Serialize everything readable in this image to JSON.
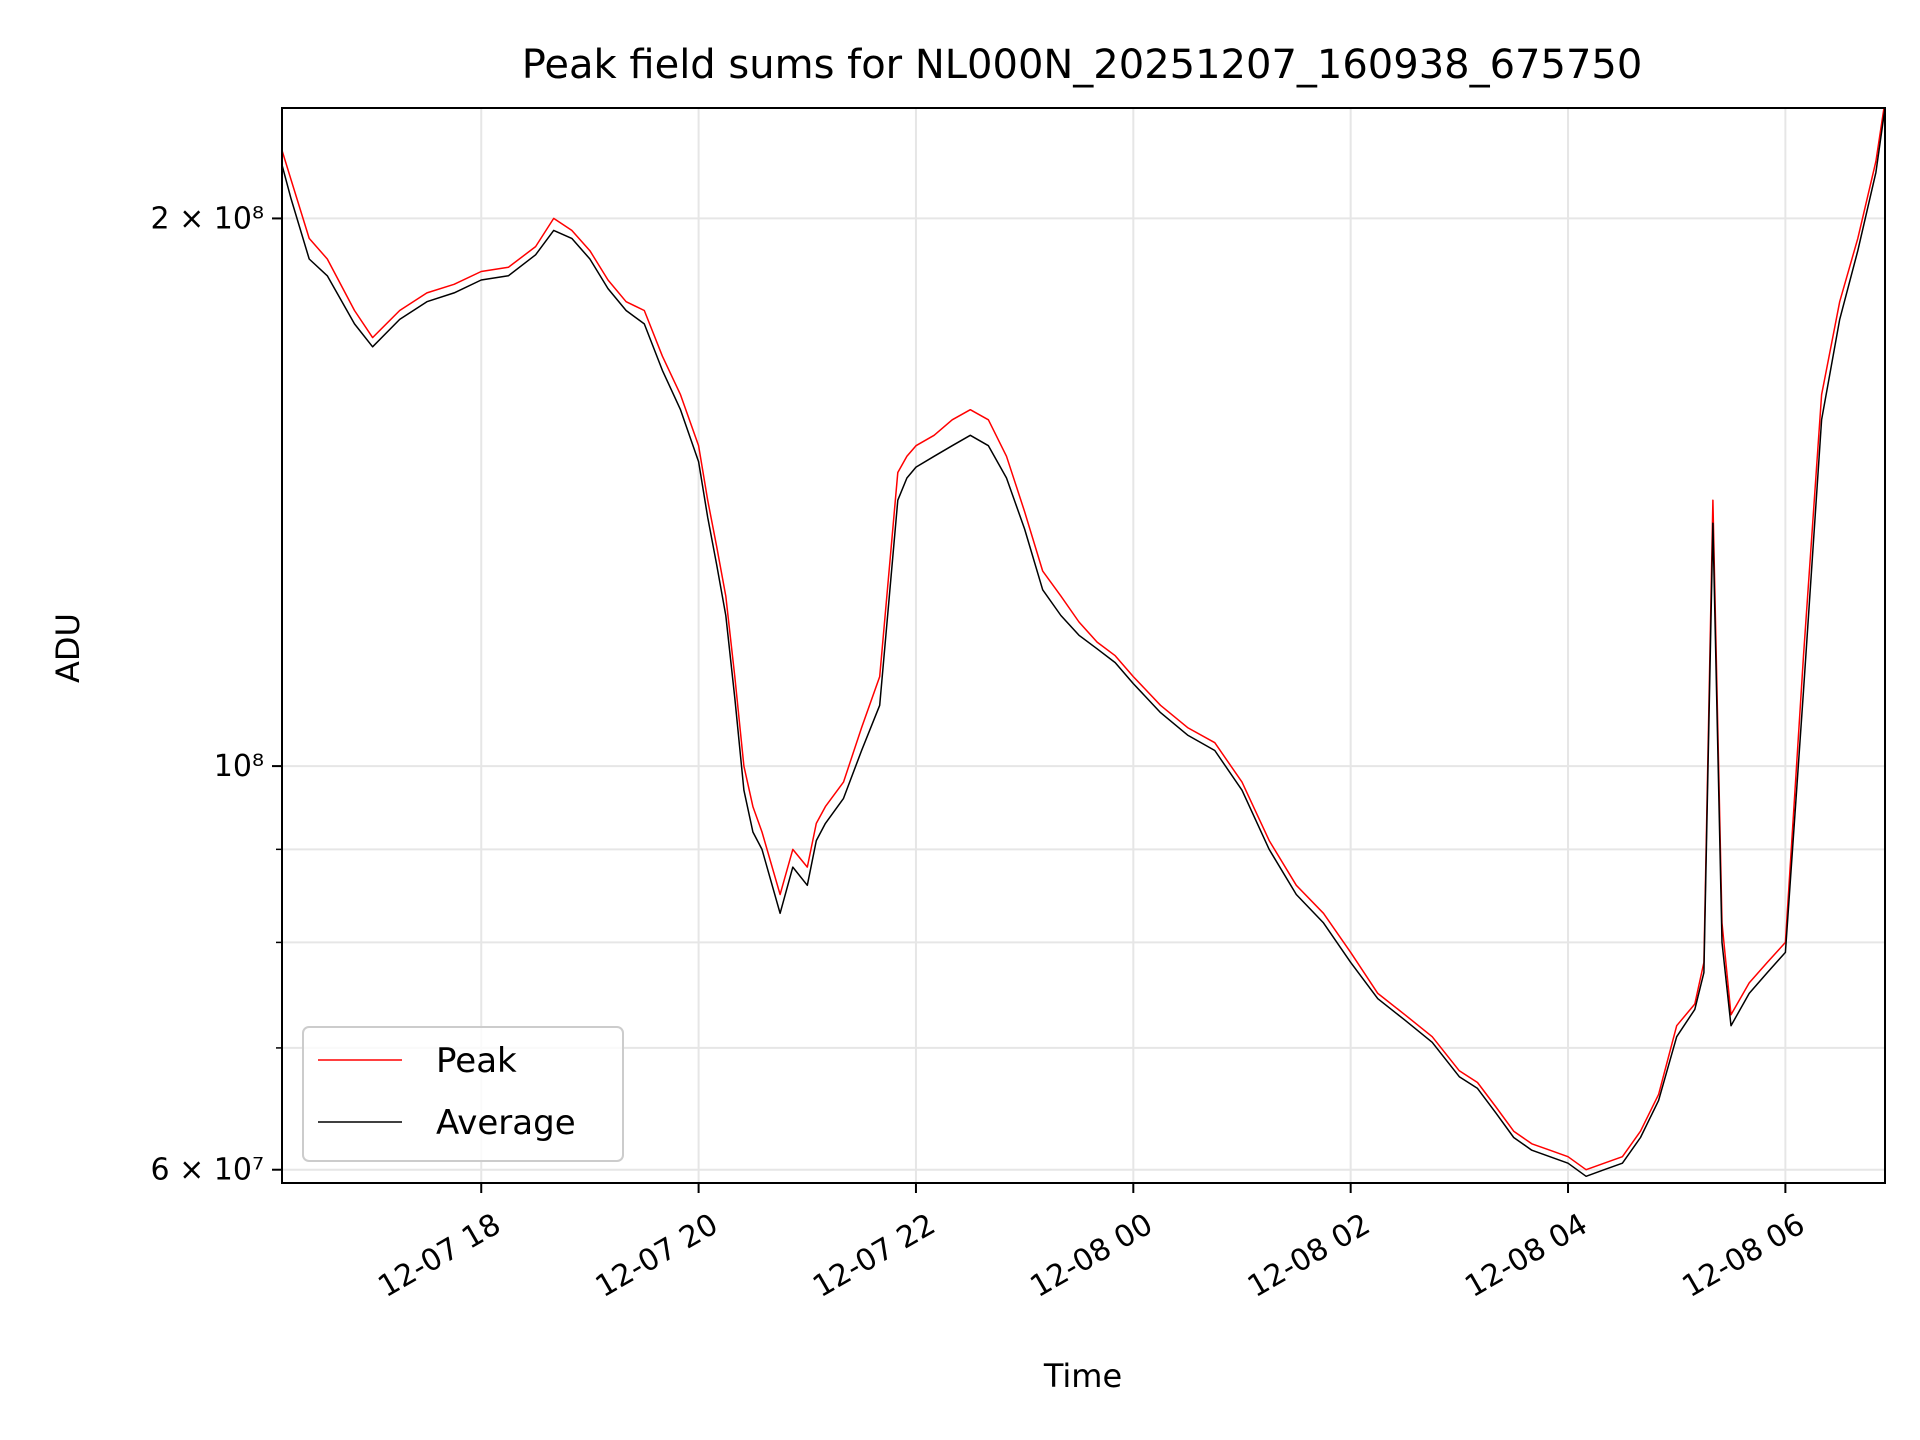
{
  "chart_data": {
    "type": "line",
    "title": "Peak field sums for NL000N_20251207_160938_675750",
    "xlabel": "Time",
    "ylabel": "ADU",
    "yscale": "log",
    "ylim": [
      59000000,
      230000000
    ],
    "xlim": [
      "2025-12-07 16:10",
      "2025-12-08 06:55"
    ],
    "x_ticks": [
      "12-07 18",
      "12-07 20",
      "12-07 22",
      "12-08 00",
      "12-08 02",
      "12-08 04",
      "12-08 06"
    ],
    "x_tick_times": [
      "2025-12-07 18:00",
      "2025-12-07 20:00",
      "2025-12-07 22:00",
      "2025-12-08 00:00",
      "2025-12-08 02:00",
      "2025-12-08 04:00",
      "2025-12-08 06:00"
    ],
    "y_major_ticks": [
      {
        "value": 60000000,
        "label": "6 × 10⁷"
      },
      {
        "value": 100000000,
        "label": "10⁸"
      },
      {
        "value": 200000000,
        "label": "2 × 10⁸"
      }
    ],
    "y_minor_ticks": [
      70000000,
      80000000,
      90000000
    ],
    "grid": true,
    "legend_position": "lower-left",
    "x": [
      "2025-12-07 16:10",
      "2025-12-07 16:15",
      "2025-12-07 16:25",
      "2025-12-07 16:35",
      "2025-12-07 16:50",
      "2025-12-07 17:00",
      "2025-12-07 17:15",
      "2025-12-07 17:30",
      "2025-12-07 17:45",
      "2025-12-07 18:00",
      "2025-12-07 18:15",
      "2025-12-07 18:30",
      "2025-12-07 18:40",
      "2025-12-07 18:50",
      "2025-12-07 19:00",
      "2025-12-07 19:10",
      "2025-12-07 19:20",
      "2025-12-07 19:30",
      "2025-12-07 19:40",
      "2025-12-07 19:50",
      "2025-12-07 20:00",
      "2025-12-07 20:05",
      "2025-12-07 20:10",
      "2025-12-07 20:15",
      "2025-12-07 20:20",
      "2025-12-07 20:25",
      "2025-12-07 20:30",
      "2025-12-07 20:35",
      "2025-12-07 20:45",
      "2025-12-07 20:52",
      "2025-12-07 21:00",
      "2025-12-07 21:05",
      "2025-12-07 21:10",
      "2025-12-07 21:20",
      "2025-12-07 21:30",
      "2025-12-07 21:40",
      "2025-12-07 21:50",
      "2025-12-07 21:55",
      "2025-12-07 22:00",
      "2025-12-07 22:10",
      "2025-12-07 22:20",
      "2025-12-07 22:30",
      "2025-12-07 22:40",
      "2025-12-07 22:50",
      "2025-12-07 23:00",
      "2025-12-07 23:10",
      "2025-12-07 23:20",
      "2025-12-07 23:30",
      "2025-12-07 23:40",
      "2025-12-07 23:50",
      "2025-12-08 00:00",
      "2025-12-08 00:15",
      "2025-12-08 00:30",
      "2025-12-08 00:45",
      "2025-12-08 01:00",
      "2025-12-08 01:15",
      "2025-12-08 01:30",
      "2025-12-08 01:45",
      "2025-12-08 02:00",
      "2025-12-08 02:15",
      "2025-12-08 02:30",
      "2025-12-08 02:45",
      "2025-12-08 03:00",
      "2025-12-08 03:10",
      "2025-12-08 03:20",
      "2025-12-08 03:30",
      "2025-12-08 03:40",
      "2025-12-08 03:50",
      "2025-12-08 04:00",
      "2025-12-08 04:10",
      "2025-12-08 04:20",
      "2025-12-08 04:30",
      "2025-12-08 04:40",
      "2025-12-08 04:50",
      "2025-12-08 05:00",
      "2025-12-08 05:10",
      "2025-12-08 05:15",
      "2025-12-08 05:20",
      "2025-12-08 05:25",
      "2025-12-08 05:30",
      "2025-12-08 05:40",
      "2025-12-08 05:50",
      "2025-12-08 06:00",
      "2025-12-08 06:10",
      "2025-12-08 06:20",
      "2025-12-08 06:30",
      "2025-12-08 06:40",
      "2025-12-08 06:50",
      "2025-12-08 06:55"
    ],
    "series": [
      {
        "name": "Peak",
        "color": "#ff0000",
        "values": [
          218000000,
          210000000,
          195000000,
          190000000,
          178000000,
          172000000,
          178000000,
          182000000,
          184000000,
          187000000,
          188000000,
          193000000,
          200000000,
          197000000,
          192000000,
          185000000,
          180000000,
          178000000,
          168000000,
          160000000,
          150000000,
          140000000,
          132000000,
          124000000,
          112000000,
          100000000,
          95000000,
          92000000,
          85000000,
          90000000,
          88000000,
          93000000,
          95000000,
          98000000,
          105000000,
          112000000,
          145000000,
          148000000,
          150000000,
          152000000,
          155000000,
          157000000,
          155000000,
          148000000,
          138000000,
          128000000,
          124000000,
          120000000,
          117000000,
          115000000,
          112000000,
          108000000,
          105000000,
          103000000,
          98000000,
          91000000,
          86000000,
          83000000,
          79000000,
          75000000,
          73000000,
          71000000,
          68000000,
          67000000,
          65000000,
          63000000,
          62000000,
          61500000,
          61000000,
          60000000,
          60500000,
          61000000,
          63000000,
          66000000,
          72000000,
          74000000,
          78000000,
          140000000,
          82000000,
          73000000,
          76000000,
          78000000,
          80000000,
          115000000,
          160000000,
          180000000,
          195000000,
          215000000,
          232000000
        ]
      },
      {
        "name": "Average",
        "color": "#000000",
        "values": [
          214000000,
          205000000,
          190000000,
          186000000,
          175000000,
          170000000,
          176000000,
          180000000,
          182000000,
          185000000,
          186000000,
          191000000,
          197000000,
          195000000,
          190000000,
          183000000,
          178000000,
          175000000,
          165000000,
          157000000,
          147000000,
          137000000,
          129000000,
          121000000,
          109000000,
          97000000,
          92000000,
          90000000,
          83000000,
          88000000,
          86000000,
          91000000,
          93000000,
          96000000,
          102000000,
          108000000,
          140000000,
          144000000,
          146000000,
          148000000,
          150000000,
          152000000,
          150000000,
          144000000,
          135000000,
          125000000,
          121000000,
          118000000,
          116000000,
          114000000,
          111000000,
          107000000,
          104000000,
          102000000,
          97000000,
          90000000,
          85000000,
          82000000,
          78000000,
          74500000,
          72500000,
          70500000,
          67500000,
          66500000,
          64500000,
          62500000,
          61500000,
          61000000,
          60500000,
          59500000,
          60000000,
          60500000,
          62500000,
          65500000,
          71000000,
          73500000,
          77000000,
          136000000,
          80000000,
          72000000,
          75000000,
          77000000,
          79000000,
          110000000,
          155000000,
          176000000,
          192000000,
          212000000,
          230000000
        ]
      }
    ]
  }
}
